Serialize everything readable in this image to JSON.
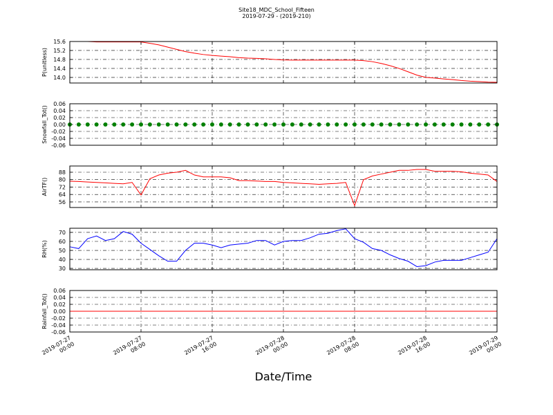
{
  "chart_data": [
    {
      "type": "line",
      "title": "Site18_MDC_School_Fifteen",
      "subtitle": "2019-07-29 - (2019-210)",
      "ylabel": "P(unitless)",
      "color": "#ff0000",
      "grid": true,
      "x": [
        "2019-07-27 00:00",
        "2019-07-27 01:00",
        "2019-07-27 02:00",
        "2019-07-27 03:00",
        "2019-07-27 04:00",
        "2019-07-27 05:00",
        "2019-07-27 06:00",
        "2019-07-27 07:00",
        "2019-07-27 08:00",
        "2019-07-27 09:00",
        "2019-07-27 10:00",
        "2019-07-27 11:00",
        "2019-07-27 12:00",
        "2019-07-27 13:00",
        "2019-07-27 14:00",
        "2019-07-27 15:00",
        "2019-07-27 16:00",
        "2019-07-27 17:00",
        "2019-07-27 18:00",
        "2019-07-27 19:00",
        "2019-07-27 20:00",
        "2019-07-27 21:00",
        "2019-07-27 22:00",
        "2019-07-27 23:00",
        "2019-07-28 00:00",
        "2019-07-28 01:00",
        "2019-07-28 02:00",
        "2019-07-28 03:00",
        "2019-07-28 04:00",
        "2019-07-28 05:00",
        "2019-07-28 06:00",
        "2019-07-28 07:00",
        "2019-07-28 08:00",
        "2019-07-28 09:00",
        "2019-07-28 10:00",
        "2019-07-28 11:00",
        "2019-07-28 12:00",
        "2019-07-28 13:00",
        "2019-07-28 14:00",
        "2019-07-28 15:00",
        "2019-07-28 16:00",
        "2019-07-28 17:00",
        "2019-07-28 18:00",
        "2019-07-28 19:00",
        "2019-07-28 20:00",
        "2019-07-28 21:00",
        "2019-07-28 22:00",
        "2019-07-28 23:00",
        "2019-07-29 00:00"
      ],
      "values": [
        15.6,
        15.6,
        15.6,
        15.58,
        15.58,
        15.58,
        15.58,
        15.58,
        15.58,
        15.52,
        15.45,
        15.35,
        15.25,
        15.15,
        15.08,
        15.02,
        14.98,
        14.95,
        14.92,
        14.88,
        14.86,
        14.85,
        14.83,
        14.8,
        14.78,
        14.77,
        14.77,
        14.77,
        14.77,
        14.77,
        14.77,
        14.77,
        14.77,
        14.75,
        14.7,
        14.62,
        14.52,
        14.4,
        14.25,
        14.1,
        14.0,
        13.97,
        13.93,
        13.9,
        13.86,
        13.83,
        13.81,
        13.79,
        13.78
      ],
      "xlim": [
        "2019-07-27 00:00",
        "2019-07-29 00:00"
      ],
      "ylim": [
        13.75,
        15.6
      ],
      "yticks": [
        {
          "value": 14,
          "label": "14.0"
        },
        14.4,
        14.8,
        15.2,
        15.6
      ]
    },
    {
      "type": "scatter",
      "ylabel": "Snowfall_Tot()",
      "color": "#008000",
      "grid": true,
      "x": [
        "2019-07-27 00:00",
        "2019-07-27 01:00",
        "2019-07-27 02:00",
        "2019-07-27 03:00",
        "2019-07-27 04:00",
        "2019-07-27 05:00",
        "2019-07-27 06:00",
        "2019-07-27 07:00",
        "2019-07-27 08:00",
        "2019-07-27 09:00",
        "2019-07-27 10:00",
        "2019-07-27 11:00",
        "2019-07-27 12:00",
        "2019-07-27 13:00",
        "2019-07-27 14:00",
        "2019-07-27 15:00",
        "2019-07-27 16:00",
        "2019-07-27 17:00",
        "2019-07-27 18:00",
        "2019-07-27 19:00",
        "2019-07-27 20:00",
        "2019-07-27 21:00",
        "2019-07-27 22:00",
        "2019-07-27 23:00",
        "2019-07-28 00:00",
        "2019-07-28 01:00",
        "2019-07-28 02:00",
        "2019-07-28 03:00",
        "2019-07-28 04:00",
        "2019-07-28 05:00",
        "2019-07-28 06:00",
        "2019-07-28 07:00",
        "2019-07-28 08:00",
        "2019-07-28 09:00",
        "2019-07-28 10:00",
        "2019-07-28 11:00",
        "2019-07-28 12:00",
        "2019-07-28 13:00",
        "2019-07-28 14:00",
        "2019-07-28 15:00",
        "2019-07-28 16:00",
        "2019-07-28 17:00",
        "2019-07-28 18:00",
        "2019-07-28 19:00",
        "2019-07-28 20:00",
        "2019-07-28 21:00",
        "2019-07-28 22:00",
        "2019-07-28 23:00",
        "2019-07-29 00:00"
      ],
      "values": [
        0,
        0,
        0,
        0,
        0,
        0,
        0,
        0,
        0,
        0,
        0,
        0,
        0,
        0,
        0,
        0,
        0,
        0,
        0,
        0,
        0,
        0,
        0,
        0,
        0,
        0,
        0,
        0,
        0,
        0,
        0,
        0,
        0,
        0,
        0,
        0,
        0,
        0,
        0,
        0,
        0,
        0,
        0,
        0,
        0,
        0,
        0,
        0,
        0
      ],
      "xlim": [
        "2019-07-27 00:00",
        "2019-07-29 00:00"
      ],
      "ylim": [
        -0.06,
        0.06
      ],
      "yticks": [
        -0.06,
        -0.04,
        -0.02,
        {
          "value": 0,
          "label": "0.00"
        },
        0.02,
        0.04,
        0.06
      ]
    },
    {
      "type": "line",
      "ylabel": "AirTF()",
      "color": "#ff0000",
      "grid": true,
      "x": [
        "2019-07-27 00:00",
        "2019-07-27 01:00",
        "2019-07-27 02:00",
        "2019-07-27 03:00",
        "2019-07-27 04:00",
        "2019-07-27 05:00",
        "2019-07-27 06:00",
        "2019-07-27 07:00",
        "2019-07-27 08:00",
        "2019-07-27 09:00",
        "2019-07-27 10:00",
        "2019-07-27 11:00",
        "2019-07-27 12:00",
        "2019-07-27 13:00",
        "2019-07-27 14:00",
        "2019-07-27 15:00",
        "2019-07-27 16:00",
        "2019-07-27 17:00",
        "2019-07-27 18:00",
        "2019-07-27 19:00",
        "2019-07-27 20:00",
        "2019-07-27 21:00",
        "2019-07-27 22:00",
        "2019-07-27 23:00",
        "2019-07-28 00:00",
        "2019-07-28 01:00",
        "2019-07-28 02:00",
        "2019-07-28 03:00",
        "2019-07-28 04:00",
        "2019-07-28 05:00",
        "2019-07-28 06:00",
        "2019-07-28 07:00",
        "2019-07-28 08:00",
        "2019-07-28 09:00",
        "2019-07-28 10:00",
        "2019-07-28 11:00",
        "2019-07-28 12:00",
        "2019-07-28 13:00",
        "2019-07-28 14:00",
        "2019-07-28 15:00",
        "2019-07-28 16:00",
        "2019-07-28 17:00",
        "2019-07-28 18:00",
        "2019-07-28 19:00",
        "2019-07-28 20:00",
        "2019-07-28 21:00",
        "2019-07-28 22:00",
        "2019-07-28 23:00",
        "2019-07-29 00:00"
      ],
      "values": [
        78.3,
        78,
        77.5,
        77,
        76.5,
        76,
        75.5,
        77,
        63.5,
        81,
        85,
        87,
        88,
        90,
        85,
        83,
        83,
        83,
        82,
        79,
        79,
        78.5,
        78,
        78,
        77,
        76.5,
        76,
        75.5,
        75,
        75.5,
        76,
        77,
        52,
        80,
        84,
        86,
        88,
        90,
        90,
        91,
        91,
        89,
        89,
        89,
        88.5,
        87,
        86,
        85,
        78
      ],
      "xlim": [
        "2019-07-27 00:00",
        "2019-07-29 00:00"
      ],
      "ylim": [
        50,
        94.7
      ],
      "yticks": [
        56,
        64,
        72,
        80,
        88
      ]
    },
    {
      "type": "line",
      "ylabel": "RH(%)",
      "color": "#0000ff",
      "grid": true,
      "x": [
        "2019-07-27 00:00",
        "2019-07-27 01:00",
        "2019-07-27 02:00",
        "2019-07-27 03:00",
        "2019-07-27 04:00",
        "2019-07-27 05:00",
        "2019-07-27 06:00",
        "2019-07-27 07:00",
        "2019-07-27 08:00",
        "2019-07-27 09:00",
        "2019-07-27 10:00",
        "2019-07-27 11:00",
        "2019-07-27 12:00",
        "2019-07-27 13:00",
        "2019-07-27 14:00",
        "2019-07-27 15:00",
        "2019-07-27 16:00",
        "2019-07-27 17:00",
        "2019-07-27 18:00",
        "2019-07-27 19:00",
        "2019-07-27 20:00",
        "2019-07-27 21:00",
        "2019-07-27 22:00",
        "2019-07-27 23:00",
        "2019-07-28 00:00",
        "2019-07-28 01:00",
        "2019-07-28 02:00",
        "2019-07-28 03:00",
        "2019-07-28 04:00",
        "2019-07-28 05:00",
        "2019-07-28 06:00",
        "2019-07-28 07:00",
        "2019-07-28 08:00",
        "2019-07-28 09:00",
        "2019-07-28 10:00",
        "2019-07-28 11:00",
        "2019-07-28 12:00",
        "2019-07-28 13:00",
        "2019-07-28 14:00",
        "2019-07-28 15:00",
        "2019-07-28 16:00",
        "2019-07-28 17:00",
        "2019-07-28 18:00",
        "2019-07-28 19:00",
        "2019-07-28 20:00",
        "2019-07-28 21:00",
        "2019-07-28 22:00",
        "2019-07-28 23:00",
        "2019-07-29 00:00"
      ],
      "values": [
        54,
        52,
        63,
        66,
        61,
        63,
        71,
        68,
        58,
        51,
        44,
        38,
        38,
        50,
        58,
        58,
        56,
        53,
        56,
        57,
        58,
        61,
        61,
        56,
        60,
        61,
        61,
        64,
        68,
        69,
        72,
        74,
        63,
        59,
        52,
        50,
        45,
        41,
        38,
        32,
        33,
        37,
        39,
        39,
        39,
        42,
        45,
        48,
        63
      ],
      "xlim": [
        "2019-07-27 00:00",
        "2019-07-29 00:00"
      ],
      "ylim": [
        28.5,
        74.6
      ],
      "yticks": [
        30,
        40,
        50,
        60,
        70
      ]
    },
    {
      "type": "line",
      "ylabel": "Rainfall_Tot()",
      "xlabel": "Date/Time",
      "color": "#ff0000",
      "grid": true,
      "x": [
        "2019-07-27 00:00",
        "2019-07-27 01:00",
        "2019-07-27 02:00",
        "2019-07-27 03:00",
        "2019-07-27 04:00",
        "2019-07-27 05:00",
        "2019-07-27 06:00",
        "2019-07-27 07:00",
        "2019-07-27 08:00",
        "2019-07-27 09:00",
        "2019-07-27 10:00",
        "2019-07-27 11:00",
        "2019-07-27 12:00",
        "2019-07-27 13:00",
        "2019-07-27 14:00",
        "2019-07-27 15:00",
        "2019-07-27 16:00",
        "2019-07-27 17:00",
        "2019-07-27 18:00",
        "2019-07-27 19:00",
        "2019-07-27 20:00",
        "2019-07-27 21:00",
        "2019-07-27 22:00",
        "2019-07-27 23:00",
        "2019-07-28 00:00",
        "2019-07-28 01:00",
        "2019-07-28 02:00",
        "2019-07-28 03:00",
        "2019-07-28 04:00",
        "2019-07-28 05:00",
        "2019-07-28 06:00",
        "2019-07-28 07:00",
        "2019-07-28 08:00",
        "2019-07-28 09:00",
        "2019-07-28 10:00",
        "2019-07-28 11:00",
        "2019-07-28 12:00",
        "2019-07-28 13:00",
        "2019-07-28 14:00",
        "2019-07-28 15:00",
        "2019-07-28 16:00",
        "2019-07-28 17:00",
        "2019-07-28 18:00",
        "2019-07-28 19:00",
        "2019-07-28 20:00",
        "2019-07-28 21:00",
        "2019-07-28 22:00",
        "2019-07-28 23:00",
        "2019-07-29 00:00"
      ],
      "values": [
        0,
        0,
        0,
        0,
        0,
        0,
        0,
        0,
        0,
        0,
        0,
        0,
        0,
        0,
        0,
        0,
        0,
        0,
        0,
        0,
        0,
        0,
        0,
        0,
        0,
        0,
        0,
        0,
        0,
        0,
        0,
        0,
        0,
        0,
        0,
        0,
        0,
        0,
        0,
        0,
        0,
        0,
        0,
        0,
        0,
        0,
        0,
        0,
        0
      ],
      "xlim": [
        "2019-07-27 00:00",
        "2019-07-29 00:00"
      ],
      "ylim": [
        -0.06,
        0.06
      ],
      "yticks": [
        -0.06,
        -0.04,
        -0.02,
        {
          "value": 0,
          "label": "0.00"
        },
        0.02,
        0.04,
        0.06
      ],
      "xticks": [
        "2019-07-27 00:00",
        "2019-07-27 08:00",
        "2019-07-27 16:00",
        "2019-07-28 00:00",
        "2019-07-28 08:00",
        "2019-07-28 16:00",
        "2019-07-29 00:00"
      ]
    }
  ]
}
